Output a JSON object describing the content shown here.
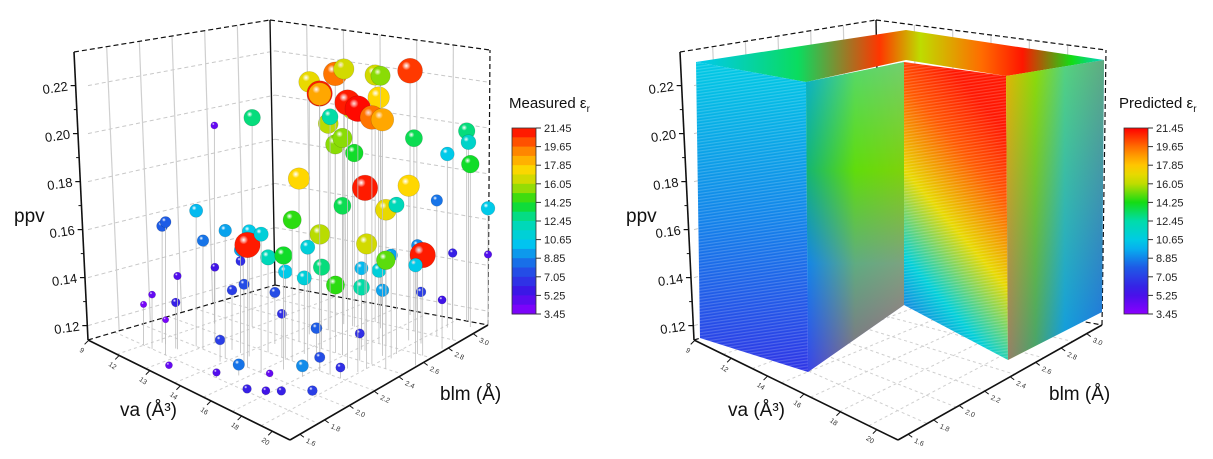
{
  "chart_data": [
    {
      "type": "scatter",
      "subtype": "3d-bubble",
      "title": "",
      "xlabel": "va (Å³)",
      "ylabel": "blm (Å)",
      "zlabel": "ppv",
      "colorbar_title": "Measured εr",
      "x_ticks": [
        "9",
        "12",
        "13",
        "14",
        "16",
        "18",
        "20"
      ],
      "y_ticks": [
        "1.6",
        "1.8",
        "2.0",
        "2.2",
        "2.4",
        "2.6",
        "2.8",
        "3.0"
      ],
      "z_ticks": [
        "0.12",
        "0.14",
        "0.16",
        "0.18",
        "0.20",
        "0.22"
      ],
      "zlim": [
        0.12,
        0.225
      ],
      "xlim": [
        9,
        21
      ],
      "ylim": [
        1.6,
        3.0
      ],
      "colorbar_ticks": [
        "21.45",
        "19.65",
        "17.85",
        "16.05",
        "14.25",
        "12.45",
        "10.65",
        "8.85",
        "7.05",
        "5.25",
        "3.45"
      ],
      "colorbar_range": [
        3.45,
        21.45
      ],
      "colorbar_style": "discrete",
      "grid": true,
      "points": [
        {
          "va": 15.5,
          "blm": 2.6,
          "ppv": 0.215,
          "er": 19.5
        },
        {
          "va": 14.8,
          "blm": 2.5,
          "ppv": 0.213,
          "er": 17.0
        },
        {
          "va": 15.2,
          "blm": 2.7,
          "ppv": 0.214,
          "er": 16.5
        },
        {
          "va": 15.0,
          "blm": 2.55,
          "ppv": 0.208,
          "er": 21.0
        },
        {
          "va": 14.6,
          "blm": 2.6,
          "ppv": 0.206,
          "er": 20.0
        },
        {
          "va": 16.2,
          "blm": 2.8,
          "ppv": 0.211,
          "er": 16.5
        },
        {
          "va": 16.9,
          "blm": 2.75,
          "ppv": 0.213,
          "er": 15.5
        },
        {
          "va": 17.0,
          "blm": 2.95,
          "ppv": 0.21,
          "er": 20.5
        },
        {
          "va": 17.8,
          "blm": 2.2,
          "ppv": 0.222,
          "er": 18.5
        },
        {
          "va": 18.6,
          "blm": 2.3,
          "ppv": 0.218,
          "er": 21.0
        },
        {
          "va": 19.2,
          "blm": 2.3,
          "ppv": 0.217,
          "er": 21.3
        },
        {
          "va": 19.2,
          "blm": 2.4,
          "ppv": 0.211,
          "er": 19.5
        },
        {
          "va": 19.0,
          "blm": 2.5,
          "ppv": 0.207,
          "er": 18.5
        },
        {
          "va": 18.4,
          "blm": 2.2,
          "ppv": 0.215,
          "er": 12.5
        },
        {
          "va": 16.4,
          "blm": 2.8,
          "ppv": 0.203,
          "er": 17.5
        },
        {
          "va": 15.7,
          "blm": 2.7,
          "ppv": 0.2,
          "er": 16.5
        },
        {
          "va": 17.5,
          "blm": 2.4,
          "ppv": 0.2,
          "er": 15.5
        },
        {
          "va": 12.3,
          "blm": 2.4,
          "ppv": 0.197,
          "er": 13.0
        },
        {
          "va": 10.9,
          "blm": 2.3,
          "ppv": 0.193,
          "er": 4.5
        },
        {
          "va": 15.1,
          "blm": 2.6,
          "ppv": 0.196,
          "er": 16.0
        },
        {
          "va": 15.5,
          "blm": 2.6,
          "ppv": 0.189,
          "er": 15.5
        },
        {
          "va": 15.8,
          "blm": 2.7,
          "ppv": 0.184,
          "er": 14.0
        },
        {
          "va": 15.0,
          "blm": 2.4,
          "ppv": 0.18,
          "er": 17.5
        },
        {
          "va": 18.4,
          "blm": 2.8,
          "ppv": 0.191,
          "er": 13.5
        },
        {
          "va": 19.5,
          "blm": 2.9,
          "ppv": 0.184,
          "er": 10.5
        },
        {
          "va": 19.8,
          "blm": 3.0,
          "ppv": 0.19,
          "er": 13.0
        },
        {
          "va": 19.9,
          "blm": 3.0,
          "ppv": 0.186,
          "er": 11.5
        },
        {
          "va": 20.4,
          "blm": 2.95,
          "ppv": 0.18,
          "er": 14.0
        },
        {
          "va": 18.0,
          "blm": 2.5,
          "ppv": 0.18,
          "er": 21.0
        },
        {
          "va": 18.9,
          "blm": 2.7,
          "ppv": 0.177,
          "er": 17.5
        },
        {
          "va": 18.4,
          "blm": 2.6,
          "ppv": 0.17,
          "er": 17.0
        },
        {
          "va": 17.5,
          "blm": 2.4,
          "ppv": 0.175,
          "er": 13.5
        },
        {
          "va": 19.4,
          "blm": 2.55,
          "ppv": 0.175,
          "er": 12.0
        },
        {
          "va": 16.2,
          "blm": 2.2,
          "ppv": 0.172,
          "er": 14.5
        },
        {
          "va": 16.0,
          "blm": 2.0,
          "ppv": 0.171,
          "er": 11.0
        },
        {
          "va": 15.2,
          "blm": 2.0,
          "ppv": 0.165,
          "er": 21.0
        },
        {
          "va": 14.5,
          "blm": 2.1,
          "ppv": 0.166,
          "er": 10.5
        },
        {
          "va": 13.9,
          "blm": 2.0,
          "ppv": 0.167,
          "er": 9.5
        },
        {
          "va": 17.0,
          "blm": 2.3,
          "ppv": 0.166,
          "er": 16.0
        },
        {
          "va": 17.1,
          "blm": 2.2,
          "ppv": 0.164,
          "er": 11.0
        },
        {
          "va": 16.5,
          "blm": 2.1,
          "ppv": 0.162,
          "er": 14.0
        },
        {
          "va": 19.3,
          "blm": 2.35,
          "ppv": 0.166,
          "er": 16.5
        },
        {
          "va": 20.0,
          "blm": 2.4,
          "ppv": 0.16,
          "er": 15.0
        },
        {
          "va": 20.5,
          "blm": 2.6,
          "ppv": 0.157,
          "er": 21.0
        },
        {
          "va": 20.9,
          "blm": 2.5,
          "ppv": 0.157,
          "er": 10.5
        },
        {
          "va": 12.2,
          "blm": 2.0,
          "ppv": 0.17,
          "er": 10.0
        },
        {
          "va": 11.2,
          "blm": 1.9,
          "ppv": 0.165,
          "er": 8.0
        },
        {
          "va": 11.0,
          "blm": 1.9,
          "ppv": 0.163,
          "er": 8.0
        },
        {
          "va": 12.6,
          "blm": 2.0,
          "ppv": 0.16,
          "er": 8.5
        },
        {
          "va": 14.0,
          "blm": 2.1,
          "ppv": 0.158,
          "er": 9.5
        },
        {
          "va": 14.8,
          "blm": 2.2,
          "ppv": 0.155,
          "er": 12.0
        },
        {
          "va": 15.8,
          "blm": 2.2,
          "ppv": 0.152,
          "er": 10.5
        },
        {
          "va": 16.3,
          "blm": 2.4,
          "ppv": 0.15,
          "er": 13.0
        },
        {
          "va": 15.0,
          "blm": 2.0,
          "ppv": 0.15,
          "er": 7.5
        },
        {
          "va": 16.1,
          "blm": 2.3,
          "ppv": 0.148,
          "er": 11.0
        },
        {
          "va": 17.0,
          "blm": 2.6,
          "ppv": 0.146,
          "er": 10.0
        },
        {
          "va": 17.1,
          "blm": 2.4,
          "ppv": 0.145,
          "er": 14.5
        },
        {
          "va": 18.0,
          "blm": 2.6,
          "ppv": 0.147,
          "er": 11.0
        },
        {
          "va": 17.8,
          "blm": 2.5,
          "ppv": 0.143,
          "er": 12.5
        },
        {
          "va": 18.2,
          "blm": 2.6,
          "ppv": 0.14,
          "er": 9.5
        },
        {
          "va": 13.2,
          "blm": 2.2,
          "ppv": 0.15,
          "er": 6.5
        },
        {
          "va": 12.5,
          "blm": 2.1,
          "ppv": 0.148,
          "er": 5.5
        },
        {
          "va": 11.9,
          "blm": 1.9,
          "ppv": 0.147,
          "er": 5.0
        },
        {
          "va": 13.5,
          "blm": 2.1,
          "ppv": 0.142,
          "er": 7.0
        },
        {
          "va": 14.4,
          "blm": 2.3,
          "ppv": 0.139,
          "er": 7.5
        },
        {
          "va": 11.2,
          "blm": 1.8,
          "ppv": 0.14,
          "er": 4.5
        },
        {
          "va": 11.8,
          "blm": 1.9,
          "ppv": 0.137,
          "er": 6.0
        },
        {
          "va": 10.7,
          "blm": 1.8,
          "ppv": 0.135,
          "er": 4.0
        },
        {
          "va": 12.0,
          "blm": 1.8,
          "ppv": 0.133,
          "er": 3.8
        },
        {
          "va": 15.6,
          "blm": 2.2,
          "ppv": 0.136,
          "er": 6.5
        },
        {
          "va": 14.0,
          "blm": 1.95,
          "ppv": 0.128,
          "er": 7.0
        },
        {
          "va": 16.8,
          "blm": 2.3,
          "ppv": 0.131,
          "er": 8.0
        },
        {
          "va": 19.6,
          "blm": 2.7,
          "ppv": 0.139,
          "er": 7.0
        },
        {
          "va": 20.8,
          "blm": 2.7,
          "ppv": 0.138,
          "er": 5.5
        },
        {
          "va": 18.5,
          "blm": 2.4,
          "ppv": 0.13,
          "er": 6.5
        },
        {
          "va": 15.5,
          "blm": 1.9,
          "ppv": 0.124,
          "er": 8.5
        },
        {
          "va": 15.0,
          "blm": 1.8,
          "ppv": 0.122,
          "er": 5.0
        },
        {
          "va": 16.5,
          "blm": 2.0,
          "ppv": 0.121,
          "er": 4.5
        },
        {
          "va": 17.6,
          "blm": 2.1,
          "ppv": 0.124,
          "er": 9.0
        },
        {
          "va": 17.8,
          "blm": 2.2,
          "ppv": 0.125,
          "er": 7.5
        },
        {
          "va": 19.0,
          "blm": 2.2,
          "ppv": 0.124,
          "er": 6.5
        },
        {
          "va": 16.8,
          "blm": 1.8,
          "ppv": 0.121,
          "er": 6.0
        },
        {
          "va": 17.5,
          "blm": 1.85,
          "ppv": 0.121,
          "er": 5.5
        },
        {
          "va": 18.0,
          "blm": 1.9,
          "ppv": 0.121,
          "er": 6.0
        },
        {
          "va": 19.0,
          "blm": 2.0,
          "ppv": 0.121,
          "er": 7.0
        },
        {
          "va": 13.0,
          "blm": 1.7,
          "ppv": 0.121,
          "er": 4.5
        },
        {
          "va": 20.2,
          "blm": 2.6,
          "ppv": 0.16,
          "er": 9.0
        },
        {
          "va": 20.6,
          "blm": 2.8,
          "ppv": 0.152,
          "er": 6.0
        },
        {
          "va": 21.0,
          "blm": 3.0,
          "ppv": 0.163,
          "er": 10.5
        },
        {
          "va": 21.0,
          "blm": 3.0,
          "ppv": 0.146,
          "er": 5.0
        },
        {
          "va": 19.7,
          "blm": 2.8,
          "ppv": 0.17,
          "er": 8.5
        },
        {
          "va": 19.5,
          "blm": 2.5,
          "ppv": 0.158,
          "er": 9.5
        }
      ]
    },
    {
      "type": "heatmap",
      "subtype": "3d-volume-slice",
      "title": "",
      "xlabel": "va (Å³)",
      "ylabel": "blm (Å)",
      "zlabel": "ppv",
      "colorbar_title": "Predicted εr",
      "x_ticks": [
        "9",
        "12",
        "14",
        "16",
        "18",
        "20"
      ],
      "y_ticks": [
        "1.6",
        "1.8",
        "2.0",
        "2.2",
        "2.4",
        "2.6",
        "2.8",
        "3.0"
      ],
      "z_ticks": [
        "0.12",
        "0.14",
        "0.16",
        "0.18",
        "0.20",
        "0.22"
      ],
      "zlim": [
        0.12,
        0.225
      ],
      "colorbar_ticks": [
        "21.45",
        "19.65",
        "17.85",
        "16.05",
        "14.25",
        "12.45",
        "10.65",
        "8.85",
        "7.05",
        "5.25",
        "3.45"
      ],
      "colorbar_range": [
        3.45,
        21.45
      ],
      "colorbar_style": "continuous",
      "grid": true,
      "description": "Volume with a front quadrant cut away, surfaces colored by predicted permittivity; maximum (~21) near top center, minimum (~4) at bottom of cut-away inner wall."
    }
  ]
}
